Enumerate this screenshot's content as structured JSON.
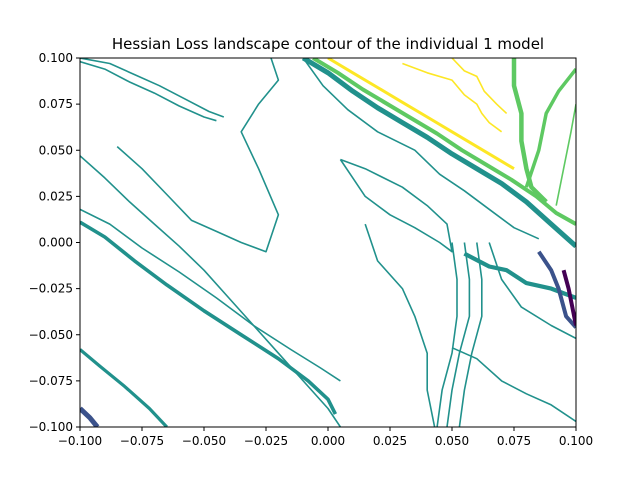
{
  "chart_data": {
    "type": "contour",
    "title": "Hessian Loss landscape contour of the individual 1 model",
    "xlabel": "",
    "ylabel": "",
    "xlim": [
      -0.1,
      0.1
    ],
    "ylim": [
      -0.1,
      0.1
    ],
    "grid": false,
    "x_ticks": [
      -0.1,
      -0.075,
      -0.05,
      -0.025,
      0.0,
      0.025,
      0.05,
      0.075,
      0.1
    ],
    "x_tick_labels": [
      "−0.100",
      "−0.075",
      "−0.050",
      "−0.025",
      "0.000",
      "0.025",
      "0.050",
      "0.075",
      "0.100"
    ],
    "y_ticks": [
      -0.1,
      -0.075,
      -0.05,
      -0.025,
      0.0,
      0.025,
      0.05,
      0.075,
      0.1
    ],
    "y_tick_labels": [
      "−0.100",
      "−0.075",
      "−0.050",
      "−0.025",
      "0.000",
      "0.025",
      "0.050",
      "0.075",
      "0.100"
    ],
    "colormap": [
      "#440154",
      "#3b528b",
      "#21918c",
      "#5ec962",
      "#fde725"
    ],
    "contours": [
      {
        "color": "#21918c",
        "width": 1.6,
        "points": [
          [
            -0.1,
            0.098
          ],
          [
            -0.09,
            0.094
          ],
          [
            -0.08,
            0.087
          ],
          [
            -0.07,
            0.081
          ],
          [
            -0.06,
            0.074
          ],
          [
            -0.05,
            0.068
          ],
          [
            -0.045,
            0.066
          ]
        ]
      },
      {
        "color": "#21918c",
        "width": 1.6,
        "points": [
          [
            -0.1,
            0.1
          ],
          [
            -0.088,
            0.097
          ],
          [
            -0.078,
            0.091
          ],
          [
            -0.068,
            0.085
          ],
          [
            -0.058,
            0.078
          ],
          [
            -0.048,
            0.071
          ],
          [
            -0.042,
            0.068
          ]
        ]
      },
      {
        "color": "#21918c",
        "width": 1.6,
        "points": [
          [
            -0.1,
            0.047
          ],
          [
            -0.09,
            0.035
          ],
          [
            -0.08,
            0.022
          ],
          [
            -0.07,
            0.01
          ],
          [
            -0.06,
            -0.002
          ],
          [
            -0.05,
            -0.015
          ],
          [
            -0.04,
            -0.03
          ],
          [
            -0.03,
            -0.045
          ],
          [
            -0.02,
            -0.06
          ],
          [
            -0.01,
            -0.075
          ],
          [
            0.0,
            -0.09
          ],
          [
            0.005,
            -0.1
          ]
        ]
      },
      {
        "color": "#21918c",
        "width": 1.6,
        "points": [
          [
            -0.1,
            0.018
          ],
          [
            -0.088,
            0.01
          ],
          [
            -0.075,
            -0.003
          ],
          [
            -0.06,
            -0.016
          ],
          [
            -0.045,
            -0.03
          ],
          [
            -0.03,
            -0.045
          ],
          [
            -0.015,
            -0.058
          ],
          [
            -0.003,
            -0.068
          ],
          [
            0.005,
            -0.075
          ]
        ]
      },
      {
        "color": "#21918c",
        "width": 3.6,
        "points": [
          [
            -0.1,
            0.011
          ],
          [
            -0.09,
            0.003
          ],
          [
            -0.078,
            -0.01
          ],
          [
            -0.065,
            -0.023
          ],
          [
            -0.05,
            -0.037
          ],
          [
            -0.035,
            -0.05
          ],
          [
            -0.02,
            -0.063
          ],
          [
            -0.008,
            -0.075
          ],
          [
            0.0,
            -0.085
          ],
          [
            0.003,
            -0.093
          ]
        ]
      },
      {
        "color": "#21918c",
        "width": 3.2,
        "points": [
          [
            -0.1,
            -0.058
          ],
          [
            -0.092,
            -0.067
          ],
          [
            -0.082,
            -0.078
          ],
          [
            -0.072,
            -0.09
          ],
          [
            -0.065,
            -0.1
          ]
        ]
      },
      {
        "color": "#3b528b",
        "width": 5.0,
        "points": [
          [
            -0.1,
            -0.09
          ],
          [
            -0.096,
            -0.095
          ],
          [
            -0.093,
            -0.1
          ]
        ]
      },
      {
        "color": "#21918c",
        "width": 1.6,
        "points": [
          [
            -0.085,
            0.052
          ],
          [
            -0.075,
            0.04
          ],
          [
            -0.065,
            0.026
          ],
          [
            -0.055,
            0.012
          ],
          [
            -0.045,
            0.006
          ],
          [
            -0.035,
            0.0
          ],
          [
            -0.025,
            -0.005
          ],
          [
            -0.02,
            0.015
          ],
          [
            -0.028,
            0.04
          ],
          [
            -0.035,
            0.06
          ],
          [
            -0.028,
            0.075
          ],
          [
            -0.02,
            0.088
          ],
          [
            -0.023,
            0.1
          ]
        ]
      },
      {
        "color": "#21918c",
        "width": 1.6,
        "points": [
          [
            -0.01,
            0.1
          ],
          [
            -0.002,
            0.085
          ],
          [
            0.008,
            0.072
          ],
          [
            0.02,
            0.06
          ],
          [
            0.035,
            0.05
          ],
          [
            0.045,
            0.037
          ],
          [
            0.055,
            0.028
          ],
          [
            0.065,
            0.018
          ],
          [
            0.075,
            0.008
          ],
          [
            0.085,
            0.002
          ]
        ]
      },
      {
        "color": "#21918c",
        "width": 1.6,
        "points": [
          [
            0.005,
            0.045
          ],
          [
            0.015,
            0.04
          ],
          [
            0.03,
            0.03
          ],
          [
            0.04,
            0.02
          ],
          [
            0.048,
            0.01
          ],
          [
            0.05,
            -0.005
          ],
          [
            0.045,
            0.0
          ],
          [
            0.035,
            0.008
          ],
          [
            0.025,
            0.015
          ],
          [
            0.015,
            0.025
          ],
          [
            0.01,
            0.035
          ],
          [
            0.005,
            0.045
          ]
        ]
      },
      {
        "color": "#21918c",
        "width": 1.6,
        "points": [
          [
            0.015,
            0.01
          ],
          [
            0.02,
            -0.01
          ],
          [
            0.03,
            -0.025
          ],
          [
            0.035,
            -0.04
          ],
          [
            0.04,
            -0.06
          ],
          [
            0.04,
            -0.08
          ],
          [
            0.043,
            -0.1
          ]
        ]
      },
      {
        "color": "#21918c",
        "width": 1.6,
        "points": [
          [
            0.05,
            0.0
          ],
          [
            0.052,
            -0.02
          ],
          [
            0.052,
            -0.04
          ],
          [
            0.05,
            -0.06
          ],
          [
            0.046,
            -0.08
          ],
          [
            0.044,
            -0.1
          ]
        ]
      },
      {
        "color": "#21918c",
        "width": 1.6,
        "points": [
          [
            0.055,
            0.0
          ],
          [
            0.057,
            -0.02
          ],
          [
            0.057,
            -0.04
          ],
          [
            0.053,
            -0.06
          ],
          [
            0.05,
            -0.08
          ],
          [
            0.048,
            -0.1
          ]
        ]
      },
      {
        "color": "#21918c",
        "width": 1.6,
        "points": [
          [
            0.06,
            0.0
          ],
          [
            0.062,
            -0.02
          ],
          [
            0.062,
            -0.04
          ],
          [
            0.058,
            -0.06
          ],
          [
            0.055,
            -0.08
          ],
          [
            0.053,
            -0.1
          ]
        ]
      },
      {
        "color": "#21918c",
        "width": 1.6,
        "points": [
          [
            0.05,
            -0.057
          ],
          [
            0.06,
            -0.063
          ],
          [
            0.07,
            -0.075
          ],
          [
            0.08,
            -0.082
          ],
          [
            0.09,
            -0.088
          ],
          [
            0.1,
            -0.097
          ]
        ]
      },
      {
        "color": "#21918c",
        "width": 1.6,
        "points": [
          [
            0.065,
            0.0
          ],
          [
            0.07,
            -0.02
          ],
          [
            0.078,
            -0.035
          ],
          [
            0.09,
            -0.045
          ],
          [
            0.1,
            -0.052
          ]
        ]
      },
      {
        "color": "#21918c",
        "width": 4.2,
        "points": [
          [
            0.055,
            -0.006
          ],
          [
            0.065,
            -0.013
          ],
          [
            0.072,
            -0.015
          ],
          [
            0.08,
            -0.022
          ],
          [
            0.09,
            -0.025
          ],
          [
            0.1,
            -0.03
          ]
        ]
      },
      {
        "color": "#21918c",
        "width": 5.0,
        "points": [
          [
            -0.01,
            0.1
          ],
          [
            0.0,
            0.092
          ],
          [
            0.01,
            0.082
          ],
          [
            0.02,
            0.073
          ],
          [
            0.03,
            0.065
          ],
          [
            0.04,
            0.057
          ],
          [
            0.05,
            0.048
          ],
          [
            0.06,
            0.04
          ],
          [
            0.07,
            0.032
          ],
          [
            0.08,
            0.022
          ],
          [
            0.09,
            0.01
          ],
          [
            0.1,
            -0.002
          ]
        ]
      },
      {
        "color": "#5ec962",
        "width": 4.0,
        "points": [
          [
            -0.006,
            0.1
          ],
          [
            0.004,
            0.092
          ],
          [
            0.014,
            0.083
          ],
          [
            0.024,
            0.075
          ],
          [
            0.034,
            0.067
          ],
          [
            0.044,
            0.059
          ],
          [
            0.054,
            0.05
          ],
          [
            0.064,
            0.042
          ],
          [
            0.074,
            0.034
          ],
          [
            0.084,
            0.025
          ],
          [
            0.092,
            0.016
          ],
          [
            0.1,
            0.01
          ]
        ]
      },
      {
        "color": "#fde725",
        "width": 3.0,
        "points": [
          [
            0.0,
            0.1
          ],
          [
            0.01,
            0.092
          ],
          [
            0.02,
            0.084
          ],
          [
            0.03,
            0.076
          ],
          [
            0.04,
            0.068
          ],
          [
            0.05,
            0.06
          ],
          [
            0.06,
            0.052
          ],
          [
            0.07,
            0.044
          ],
          [
            0.075,
            0.04
          ]
        ]
      },
      {
        "color": "#fde725",
        "width": 1.6,
        "points": [
          [
            0.03,
            0.097
          ],
          [
            0.04,
            0.092
          ],
          [
            0.05,
            0.088
          ],
          [
            0.055,
            0.08
          ],
          [
            0.06,
            0.075
          ],
          [
            0.062,
            0.07
          ],
          [
            0.065,
            0.065
          ],
          [
            0.07,
            0.06
          ]
        ]
      },
      {
        "color": "#fde725",
        "width": 1.6,
        "points": [
          [
            0.05,
            0.1
          ],
          [
            0.055,
            0.093
          ],
          [
            0.06,
            0.09
          ],
          [
            0.063,
            0.082
          ],
          [
            0.068,
            0.075
          ],
          [
            0.072,
            0.07
          ]
        ]
      },
      {
        "color": "#5ec962",
        "width": 4.5,
        "points": [
          [
            0.075,
            0.1
          ],
          [
            0.075,
            0.085
          ],
          [
            0.078,
            0.07
          ],
          [
            0.078,
            0.055
          ],
          [
            0.08,
            0.04
          ],
          [
            0.082,
            0.03
          ],
          [
            0.088,
            0.022
          ]
        ]
      },
      {
        "color": "#5ec962",
        "width": 3.5,
        "points": [
          [
            0.08,
            0.03
          ],
          [
            0.085,
            0.05
          ],
          [
            0.088,
            0.07
          ],
          [
            0.093,
            0.082
          ],
          [
            0.1,
            0.094
          ]
        ]
      },
      {
        "color": "#5ec962",
        "width": 1.6,
        "points": [
          [
            0.092,
            0.02
          ],
          [
            0.095,
            0.04
          ],
          [
            0.098,
            0.06
          ],
          [
            0.1,
            0.075
          ]
        ]
      },
      {
        "color": "#3b528b",
        "width": 4.0,
        "points": [
          [
            0.085,
            -0.005
          ],
          [
            0.09,
            -0.015
          ],
          [
            0.093,
            -0.025
          ],
          [
            0.096,
            -0.04
          ],
          [
            0.1,
            -0.046
          ]
        ]
      },
      {
        "color": "#440154",
        "width": 4.0,
        "points": [
          [
            0.095,
            -0.015
          ],
          [
            0.097,
            -0.025
          ],
          [
            0.1,
            -0.045
          ]
        ]
      }
    ]
  }
}
